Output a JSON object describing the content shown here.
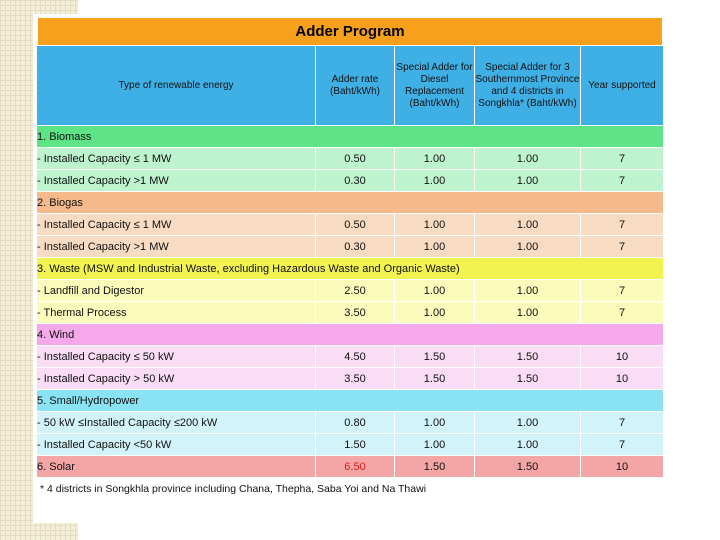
{
  "title": "Adder  Program",
  "header": {
    "col1": "Type of renewable energy",
    "col2": "Adder rate (Baht/kWh)",
    "col3": "Special Adder for Diesel Replacement (Baht/kWh)",
    "col4": "Special Adder for 3 Southernmost Province and 4 districts in Songkhla* (Baht/kWh)",
    "col5": "Year supported"
  },
  "sections": [
    {
      "name": "1. Biomass",
      "rows": [
        {
          "type": "- Installed Capacity ≤ 1 MW",
          "adder": "0.50",
          "diesel": "1.00",
          "south": "1.00",
          "year": "7"
        },
        {
          "type": "- Installed Capacity >1 MW",
          "adder": "0.30",
          "diesel": "1.00",
          "south": "1.00",
          "year": "7"
        }
      ]
    },
    {
      "name": "2. Biogas",
      "rows": [
        {
          "type": "- Installed Capacity ≤ 1 MW",
          "adder": "0.50",
          "diesel": "1.00",
          "south": "1.00",
          "year": "7"
        },
        {
          "type": "- Installed Capacity >1 MW",
          "adder": "0.30",
          "diesel": "1.00",
          "south": "1.00",
          "year": "7"
        }
      ]
    },
    {
      "name": "3. Waste (MSW and Industrial Waste, excluding Hazardous Waste and Organic Waste)",
      "rows": [
        {
          "type": "-  Landfill and Digestor",
          "adder": "2.50",
          "diesel": "1.00",
          "south": "1.00",
          "year": "7"
        },
        {
          "type": "- Thermal  Process",
          "adder": "3.50",
          "diesel": "1.00",
          "south": "1.00",
          "year": "7"
        }
      ]
    },
    {
      "name": "4. Wind",
      "rows": [
        {
          "type": "- Installed Capacity ≤ 50 kW",
          "adder": "4.50",
          "diesel": "1.50",
          "south": "1.50",
          "year": "10"
        },
        {
          "type": "- Installed Capacity > 50 kW",
          "adder": "3.50",
          "diesel": "1.50",
          "south": "1.50",
          "year": "10"
        }
      ]
    },
    {
      "name": "5. Small/Hydropower",
      "rows": [
        {
          "type": "- 50 kW ≤Installed Capacity ≤200 kW",
          "adder": "0.80",
          "diesel": "1.00",
          "south": "1.00",
          "year": "7"
        },
        {
          "type": "- Installed Capacity <50 kW",
          "adder": "1.50",
          "diesel": "1.00",
          "south": "1.00",
          "year": "7"
        }
      ]
    }
  ],
  "solar": {
    "name": "6. Solar",
    "adder": "6.50",
    "diesel": "1.50",
    "south": "1.50",
    "year": "10"
  },
  "footnote": "* 4 districts in Songkhla province including Chana, Thepha, Saba Yoi and Na Thawi",
  "colors": {
    "title": "#f6a01c",
    "header": "#3fb0e6",
    "biomass": "#5fe387",
    "biogas": "#f4ba8b",
    "waste": "#f2f350",
    "wind": "#f5a8ea",
    "hydro": "#8ae3f4",
    "solar": "#f4a5a5",
    "solar_rate_text": "#e01919"
  }
}
